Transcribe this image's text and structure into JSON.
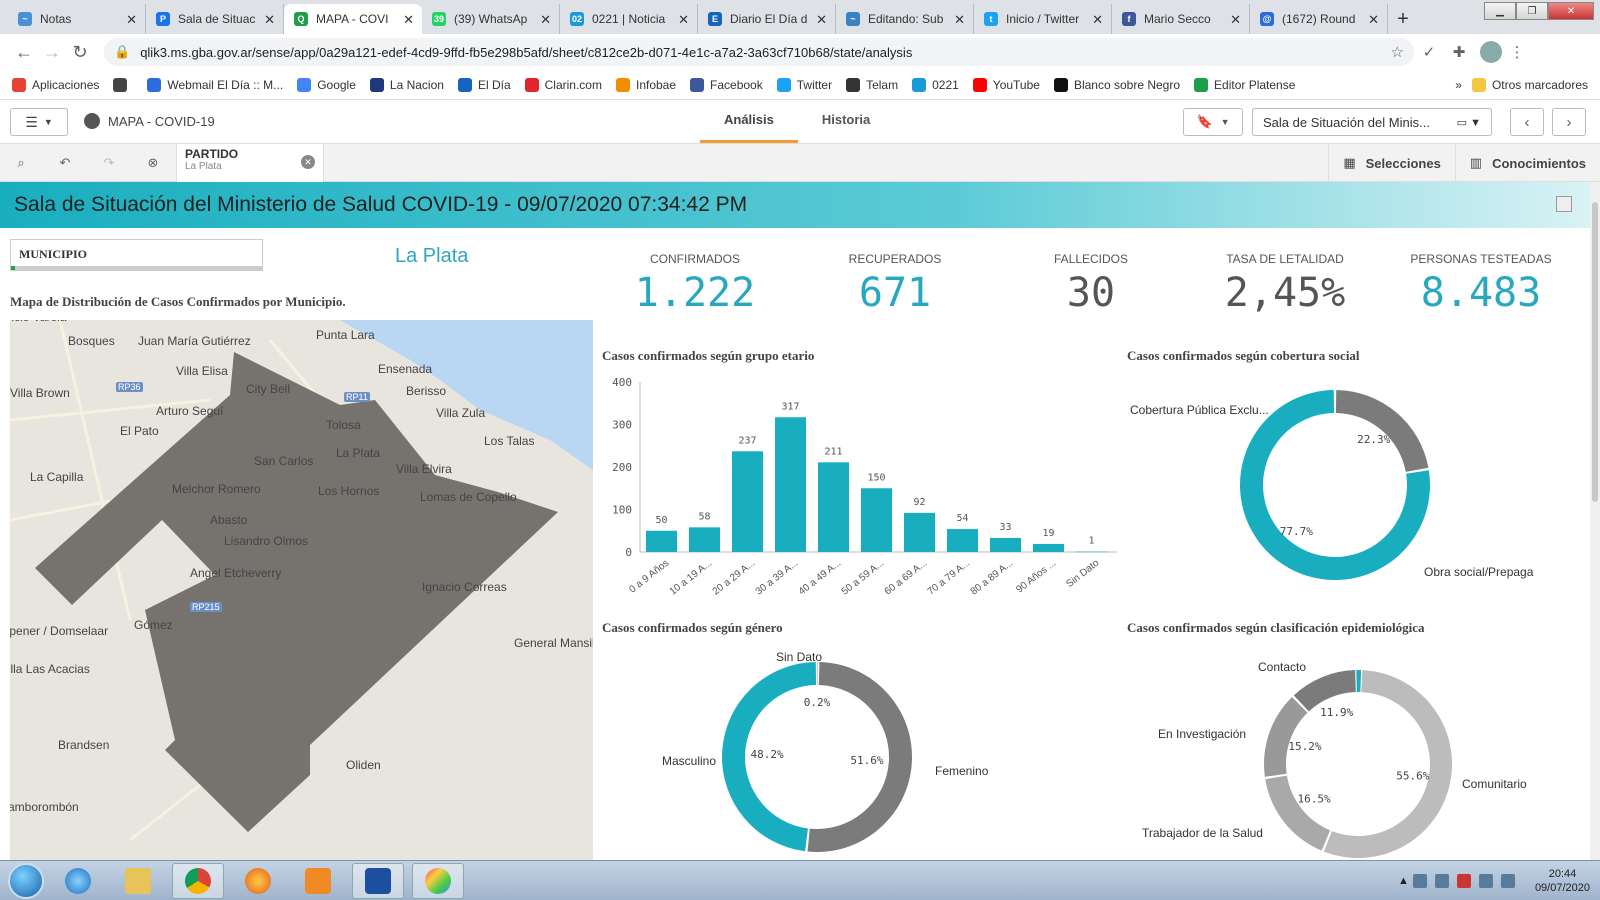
{
  "browser": {
    "tabs": [
      {
        "label": "Notas",
        "color": "#4a90d9",
        "glyph": "~"
      },
      {
        "label": "Sala de Situac",
        "color": "#1a73e8",
        "glyph": "P"
      },
      {
        "label": "MAPA - COVI",
        "color": "#1d9f4a",
        "glyph": "Q",
        "active": true
      },
      {
        "label": "(39) WhatsAp",
        "color": "#25d366",
        "glyph": "39"
      },
      {
        "label": "0221 | Noticia",
        "color": "#1a9bd7",
        "glyph": "02"
      },
      {
        "label": "Diario El Día d",
        "color": "#1565c0",
        "glyph": "E"
      },
      {
        "label": "Editando: Sub",
        "color": "#3b82c4",
        "glyph": "~"
      },
      {
        "label": "Inicio / Twitter",
        "color": "#1da1f2",
        "glyph": "t"
      },
      {
        "label": "Mario Secco",
        "color": "#3b5998",
        "glyph": "f"
      },
      {
        "label": "(1672) Round",
        "color": "#2d6cdf",
        "glyph": "@"
      }
    ],
    "url": "qlik3.ms.gba.gov.ar/sense/app/0a29a121-edef-4cd9-9ffd-fb5e298b5afd/sheet/c812ce2b-d071-4e1c-a7a2-3a63cf710b68/state/analysis",
    "bookmarks": [
      {
        "label": "Aplicaciones",
        "color": "#e94235"
      },
      {
        "label": "",
        "color": "#444"
      },
      {
        "label": "Webmail El Día :: M...",
        "color": "#2d6cdf"
      },
      {
        "label": "Google",
        "color": "#4285f4"
      },
      {
        "label": "La Nacion",
        "color": "#1e3a7b"
      },
      {
        "label": "El Día",
        "color": "#1565c0"
      },
      {
        "label": "Clarin.com",
        "color": "#e0262c"
      },
      {
        "label": "Infobae",
        "color": "#f28c00"
      },
      {
        "label": "Facebook",
        "color": "#3b5998"
      },
      {
        "label": "Twitter",
        "color": "#1da1f2"
      },
      {
        "label": "Telam",
        "color": "#333"
      },
      {
        "label": "0221",
        "color": "#1a9bd7"
      },
      {
        "label": "YouTube",
        "color": "#ff0000"
      },
      {
        "label": "Blanco sobre Negro",
        "color": "#111"
      },
      {
        "label": "Editor Platense",
        "color": "#1d9f4a"
      }
    ],
    "more": "»",
    "other_bookmarks": "Otros marcadores"
  },
  "qlik": {
    "app_title": "MAPA - COVID-19",
    "tabs": [
      "Análisis",
      "Historia"
    ],
    "sheet_selector": "Sala de Situación del Minis...",
    "selection": {
      "field": "PARTIDO",
      "value": "La Plata"
    },
    "selections_label": "Selecciones",
    "insights_label": "Conocimientos"
  },
  "dashboard": {
    "banner": "Sala de Situación del Ministerio de Salud COVID-19 - 09/07/2020 07:34:42 PM",
    "municipio_label": "MUNICIPIO",
    "selected_municipio": "La Plata",
    "map_title": "Mapa de Distribución de Casos Confirmados por Municipio.",
    "map_places": [
      {
        "name": "Florencio Varela",
        "x": -30,
        "y": -10
      },
      {
        "name": "Bosques",
        "x": 58,
        "y": 14
      },
      {
        "name": "Juan María Gutiérrez",
        "x": 128,
        "y": 14
      },
      {
        "name": "Punta Lara",
        "x": 306,
        "y": 8
      },
      {
        "name": "Villa Elisa",
        "x": 166,
        "y": 44
      },
      {
        "name": "Ensenada",
        "x": 368,
        "y": 42
      },
      {
        "name": "City Bell",
        "x": 236,
        "y": 62
      },
      {
        "name": "Berisso",
        "x": 396,
        "y": 64
      },
      {
        "name": "Villa Brown",
        "x": 0,
        "y": 66
      },
      {
        "name": "Arturo Seguí",
        "x": 146,
        "y": 84
      },
      {
        "name": "Villa Zula",
        "x": 426,
        "y": 86
      },
      {
        "name": "Tolosa",
        "x": 316,
        "y": 98
      },
      {
        "name": "El Pato",
        "x": 110,
        "y": 104
      },
      {
        "name": "Los Talas",
        "x": 474,
        "y": 114
      },
      {
        "name": "La Plata",
        "x": 326,
        "y": 126
      },
      {
        "name": "San Carlos",
        "x": 244,
        "y": 134
      },
      {
        "name": "Villa Elvira",
        "x": 386,
        "y": 142
      },
      {
        "name": "La Capilla",
        "x": 20,
        "y": 150
      },
      {
        "name": "Melchor Romero",
        "x": 162,
        "y": 162
      },
      {
        "name": "Los Hornos",
        "x": 308,
        "y": 164
      },
      {
        "name": "Lomas de Copello",
        "x": 410,
        "y": 170
      },
      {
        "name": "Abasto",
        "x": 200,
        "y": 193
      },
      {
        "name": "Lisandro Olmos",
        "x": 214,
        "y": 214
      },
      {
        "name": "Angel Etcheverry",
        "x": 180,
        "y": 246
      },
      {
        "name": "Ignacio Correas",
        "x": 412,
        "y": 260
      },
      {
        "name": "Gómez",
        "x": 124,
        "y": 298
      },
      {
        "name": "Jeppener / Domselaar",
        "x": -20,
        "y": 304
      },
      {
        "name": "General Mansilla",
        "x": 504,
        "y": 316
      },
      {
        "name": "Villa Las Acacias",
        "x": -10,
        "y": 342
      },
      {
        "name": "Brandsen",
        "x": 48,
        "y": 418
      },
      {
        "name": "Oliden",
        "x": 336,
        "y": 438
      },
      {
        "name": "Samborombón",
        "x": -10,
        "y": 480
      }
    ],
    "map_roads": [
      {
        "name": "RP36",
        "x": 106,
        "y": 62
      },
      {
        "name": "RP11",
        "x": 334,
        "y": 72
      },
      {
        "name": "RP215",
        "x": 180,
        "y": 282
      }
    ],
    "kpis": [
      {
        "label": "CONFIRMADOS",
        "value": "1.222",
        "color": "#28a8bf"
      },
      {
        "label": "RECUPERADOS",
        "value": "671",
        "color": "#28a8bf"
      },
      {
        "label": "FALLECIDOS",
        "value": "30",
        "color": "#555555"
      },
      {
        "label": "TASA DE LETALIDAD",
        "value": "2,45%",
        "color": "#555555"
      },
      {
        "label": "PERSONAS TESTEADAS",
        "value": "8.483",
        "color": "#28a8bf"
      }
    ]
  },
  "chart_data": [
    {
      "type": "bar",
      "title": "Casos confirmados según grupo etario",
      "categories": [
        "0 a 9 Años",
        "10 a 19 A...",
        "20 a 29 A...",
        "30 a 39 A...",
        "40 a 49 A...",
        "50 a 59 A...",
        "60 a 69 A...",
        "70 a 79 A...",
        "80 a 89 A...",
        "90 Años ...",
        "Sin Dato"
      ],
      "values": [
        50,
        58,
        237,
        317,
        211,
        150,
        92,
        54,
        33,
        19,
        1
      ],
      "ylim": [
        0,
        400
      ],
      "yticks": [
        0,
        100,
        200,
        300,
        400
      ],
      "color": "#19aebf"
    },
    {
      "type": "pie",
      "title": "Casos confirmados según cobertura social",
      "slices": [
        {
          "label": "Cobertura Pública Exclu...",
          "value": 22.3,
          "pct": "22.3%",
          "color": "#7b7b7b"
        },
        {
          "label": "Obra social/Prepaga",
          "value": 77.7,
          "pct": "77.7%",
          "color": "#19aebf"
        }
      ]
    },
    {
      "type": "pie",
      "title": "Casos confirmados según género",
      "slices": [
        {
          "label": "Sin Dato",
          "value": 0.2,
          "pct": "0.2%",
          "color": "#cccccc"
        },
        {
          "label": "Femenino",
          "value": 51.6,
          "pct": "51.6%",
          "color": "#7b7b7b"
        },
        {
          "label": "Masculino",
          "value": 48.2,
          "pct": "48.2%",
          "color": "#19aebf"
        }
      ]
    },
    {
      "type": "pie",
      "title": "Casos confirmados según clasificación epidemiológica",
      "slices": [
        {
          "label": "Contacto",
          "value": 0.8,
          "pct": "",
          "color": "#19aebf"
        },
        {
          "label": "Comunitario",
          "value": 55.6,
          "pct": "55.6%",
          "color": "#bcbcbc"
        },
        {
          "label": "Trabajador de la Salud",
          "value": 16.5,
          "pct": "16.5%",
          "color": "#a9a9a9"
        },
        {
          "label": "En Investigación",
          "value": 15.2,
          "pct": "15.2%",
          "color": "#999999"
        },
        {
          "label": "Contacto",
          "value": 11.9,
          "pct": "11.9%",
          "color": "#7b7b7b"
        }
      ]
    }
  ],
  "taskbar": {
    "time": "20:44",
    "date": "09/07/2020"
  }
}
